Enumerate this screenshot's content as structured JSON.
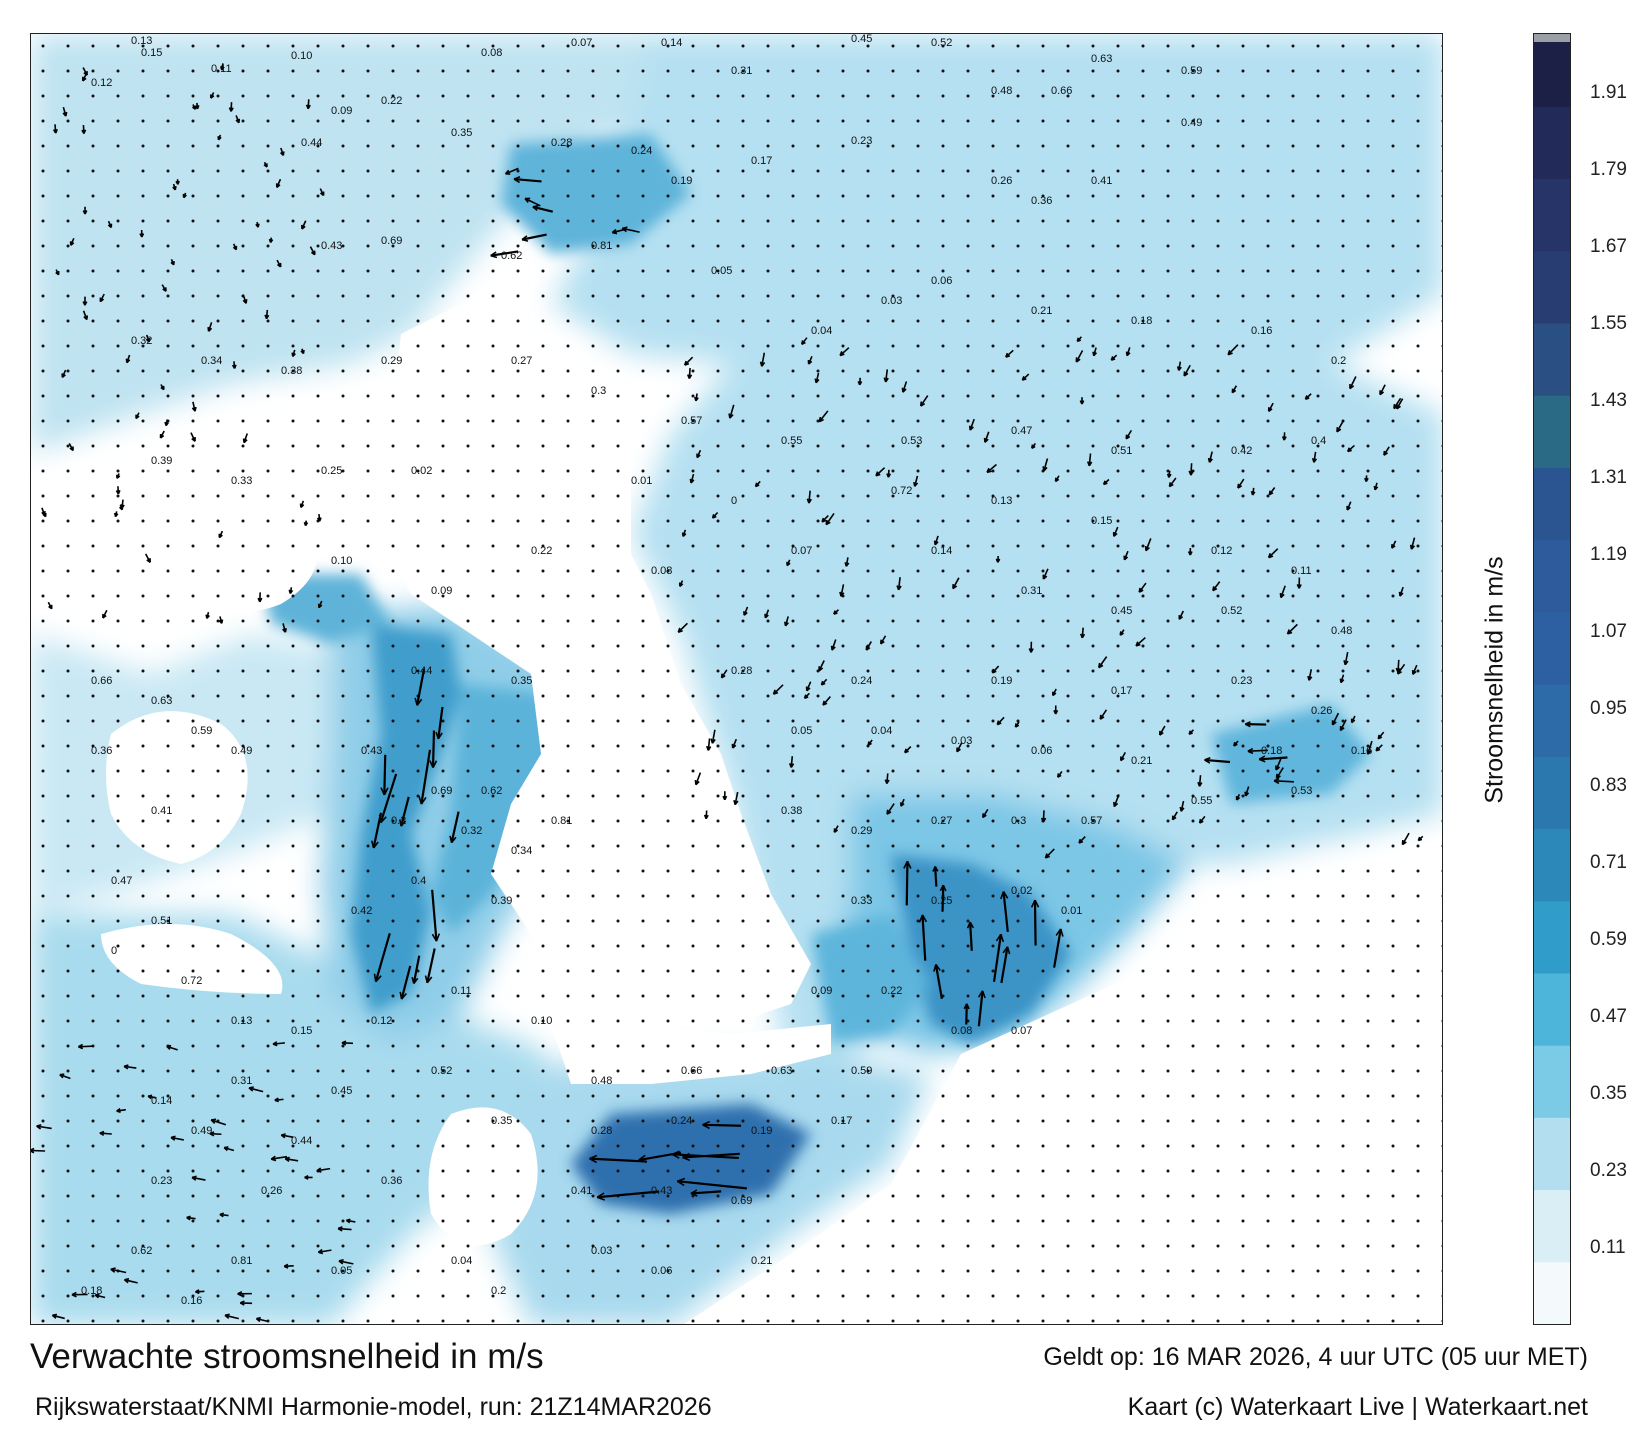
{
  "map": {
    "legend_title": "Stroomsnelheid in m/s",
    "colorbar": {
      "ticks": [
        "1.91",
        "1.79",
        "1.67",
        "1.55",
        "1.43",
        "1.31",
        "1.19",
        "1.07",
        "0.95",
        "0.83",
        "0.71",
        "0.59",
        "0.47",
        "0.35",
        "0.23",
        "0.11"
      ],
      "tick_values": [
        1.91,
        1.79,
        1.67,
        1.55,
        1.43,
        1.31,
        1.19,
        1.07,
        0.95,
        0.83,
        0.71,
        0.59,
        0.47,
        0.35,
        0.23,
        0.11
      ],
      "range": [
        0,
        2.0
      ],
      "colors": [
        "#f4fafc",
        "#d9eef5",
        "#b3def0",
        "#7ccbe6",
        "#4db4da",
        "#2f9cc9",
        "#2c88b8",
        "#2a78ae",
        "#2c6aa8",
        "#2d60a3",
        "#2d5b9c",
        "#2b5590",
        "#2b6a85",
        "#2a4f82",
        "#283d72",
        "#273468",
        "#222a5a",
        "#1c1f46",
        "#9aa0a6"
      ]
    },
    "footer": {
      "title": "Verwachte stroomsnelheid in m/s",
      "source": "Rijkswaterstaat/KNMI Harmonie-model, run: 21Z14MAR2026",
      "valid": "Geldt op: 16 MAR 2026, 4 uur UTC (05 uur MET)",
      "credit": "Kaart (c) Waterkaart Live | Waterkaart.net"
    },
    "sample_values": [
      {
        "label": "0.13"
      },
      {
        "label": "0.15"
      },
      {
        "label": "0.12"
      },
      {
        "label": "0.11"
      },
      {
        "label": "0.10"
      },
      {
        "label": "0.09"
      },
      {
        "label": "0.22"
      },
      {
        "label": "0.08"
      },
      {
        "label": "0.07"
      },
      {
        "label": "0.14"
      },
      {
        "label": "0.31"
      },
      {
        "label": "0.45"
      },
      {
        "label": "0.52"
      },
      {
        "label": "0.48"
      },
      {
        "label": "0.66"
      },
      {
        "label": "0.63"
      },
      {
        "label": "0.59"
      },
      {
        "label": "0.49"
      },
      {
        "label": "0.44"
      },
      {
        "label": "0.35"
      },
      {
        "label": "0.28"
      },
      {
        "label": "0.24"
      },
      {
        "label": "0.19"
      },
      {
        "label": "0.17"
      },
      {
        "label": "0.23"
      },
      {
        "label": "0.26"
      },
      {
        "label": "0.36"
      },
      {
        "label": "0.41"
      },
      {
        "label": "0.43"
      },
      {
        "label": "0.69"
      },
      {
        "label": "0.62"
      },
      {
        "label": "0.81"
      },
      {
        "label": "0.05"
      },
      {
        "label": "0.04"
      },
      {
        "label": "0.03"
      },
      {
        "label": "0.06"
      },
      {
        "label": "0.21"
      },
      {
        "label": "0.18"
      },
      {
        "label": "0.16"
      },
      {
        "label": "0.2"
      },
      {
        "label": "0.32"
      },
      {
        "label": "0.34"
      },
      {
        "label": "0.38"
      },
      {
        "label": "0.29"
      },
      {
        "label": "0.27"
      },
      {
        "label": "0.3"
      },
      {
        "label": "0.57"
      },
      {
        "label": "0.55"
      },
      {
        "label": "0.53"
      },
      {
        "label": "0.47"
      },
      {
        "label": "0.51"
      },
      {
        "label": "0.42"
      },
      {
        "label": "0.4"
      },
      {
        "label": "0.39"
      },
      {
        "label": "0.33"
      },
      {
        "label": "0.25"
      },
      {
        "label": "0.02"
      },
      {
        "label": "0.01"
      },
      {
        "label": "0"
      },
      {
        "label": "0.72"
      }
    ]
  }
}
